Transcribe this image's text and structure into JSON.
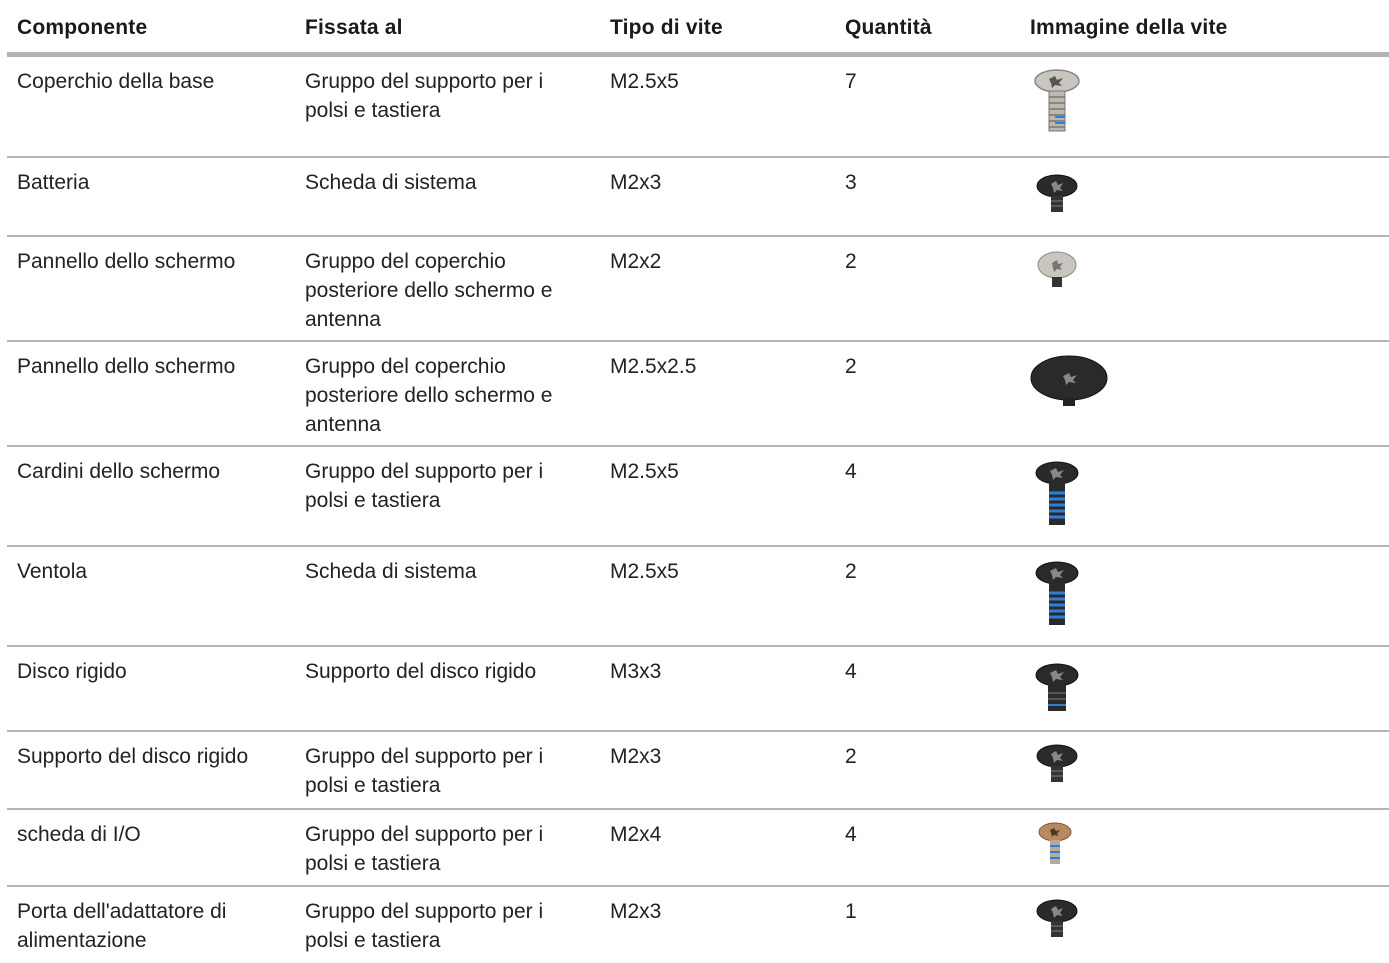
{
  "headers": {
    "component": "Componente",
    "fixed_to": "Fissata al",
    "screw_type": "Tipo di vite",
    "quantity": "Quantità",
    "screw_image": "Immagine della vite"
  },
  "rows": [
    {
      "component": "Coperchio della base",
      "fixed_to": "Gruppo del supporto per i polsi e tastiera",
      "screw_type": "M2.5x5",
      "quantity": "7",
      "screw_image": "silver-long-screw-icon"
    },
    {
      "component": "Batteria",
      "fixed_to": "Scheda di sistema",
      "screw_type": "M2x3",
      "quantity": "3",
      "screw_image": "black-short-screw-icon"
    },
    {
      "component": "Pannello dello schermo",
      "fixed_to": "Gruppo del coperchio posteriore dello schermo e antenna",
      "screw_type": "M2x2",
      "quantity": "2",
      "screw_image": "silver-short-screw-icon"
    },
    {
      "component": "Pannello dello schermo",
      "fixed_to": "Gruppo del coperchio posteriore dello schermo e antenna",
      "screw_type": "M2.5x2.5",
      "quantity": "2",
      "screw_image": "black-wide-head-screw-icon"
    },
    {
      "component": "Cardini dello schermo",
      "fixed_to": "Gruppo del supporto per i polsi e tastiera",
      "screw_type": "M2.5x5",
      "quantity": "4",
      "screw_image": "black-blue-thread-screw-icon"
    },
    {
      "component": "Ventola",
      "fixed_to": "Scheda di sistema",
      "screw_type": "M2.5x5",
      "quantity": "2",
      "screw_image": "black-blue-thread-screw-icon"
    },
    {
      "component": "Disco rigido",
      "fixed_to": "Supporto del disco rigido",
      "screw_type": "M3x3",
      "quantity": "4",
      "screw_image": "black-medium-screw-icon"
    },
    {
      "component": "Supporto del disco rigido",
      "fixed_to": "Gruppo del supporto per i polsi e tastiera",
      "screw_type": "M2x3",
      "quantity": "2",
      "screw_image": "black-short-screw-icon"
    },
    {
      "component": "scheda di I/O",
      "fixed_to": "Gruppo del supporto per i polsi e tastiera",
      "screw_type": "M2x4",
      "quantity": "4",
      "screw_image": "bronze-small-screw-icon"
    },
    {
      "component": "Porta dell'adattatore di alimentazione",
      "fixed_to": "Gruppo del supporto per i polsi e tastiera",
      "screw_type": "M2x3",
      "quantity": "1",
      "screw_image": "black-short-screw-icon"
    }
  ],
  "colors": {
    "rule": "#b3b3b3",
    "silver": "#c9c6c0",
    "black": "#2a2a2a",
    "blue_thread": "#2f7fd6",
    "bronze": "#b98a5e"
  }
}
